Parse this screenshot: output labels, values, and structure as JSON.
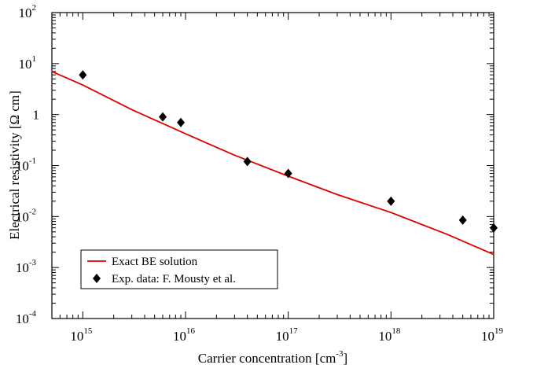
{
  "chart_data": {
    "type": "line",
    "title": "",
    "xlabel": "Carrier concentration [cm",
    "xlabel_exp": "-3",
    "xlabel_end": "]",
    "ylabel": "Electrical resistivity [Ω cm]",
    "x_scale": "log",
    "y_scale": "log",
    "xlim": [
      500000000000000.0,
      1e+19
    ],
    "ylim": [
      0.0001,
      100
    ],
    "x_ticks": [
      {
        "value": 1000000000000000.0,
        "base": "10",
        "exp": "15"
      },
      {
        "value": 1e+16,
        "base": "10",
        "exp": "16"
      },
      {
        "value": 1e+17,
        "base": "10",
        "exp": "17"
      },
      {
        "value": 1e+18,
        "base": "10",
        "exp": "18"
      },
      {
        "value": 1e+19,
        "base": "10",
        "exp": "19"
      }
    ],
    "y_ticks": [
      {
        "value": 0.0001,
        "base": "10",
        "exp": "-4"
      },
      {
        "value": 0.001,
        "base": "10",
        "exp": "-3"
      },
      {
        "value": 0.01,
        "base": "10",
        "exp": "-2"
      },
      {
        "value": 0.1,
        "base": "10",
        "exp": "-1"
      },
      {
        "value": 1,
        "base": "1",
        "exp": ""
      },
      {
        "value": 10,
        "base": "10",
        "exp": "1"
      },
      {
        "value": 100,
        "base": "10",
        "exp": "2"
      }
    ],
    "grid": false,
    "legend_position": "bottom-left",
    "series": [
      {
        "name": "Exact BE solution",
        "kind": "line",
        "color": "#dd0000",
        "x": [
          500000000000000.0,
          1000000000000000.0,
          3000000000000000.0,
          1e+16,
          3e+16,
          1e+17,
          3e+17,
          1e+18,
          3.5e+18,
          1e+19
        ],
        "y": [
          7,
          3.8,
          1.25,
          0.42,
          0.16,
          0.062,
          0.027,
          0.012,
          0.0045,
          0.0018
        ]
      },
      {
        "name": "Exp. data: F. Mousty et al.",
        "kind": "scatter",
        "marker": "diamond",
        "color": "#000000",
        "x": [
          1000000000000000.0,
          6000000000000000.0,
          9000000000000000.0,
          4e+16,
          1e+17,
          1e+18,
          5e+18,
          1e+19
        ],
        "y": [
          6,
          0.9,
          0.7,
          0.12,
          0.07,
          0.02,
          0.0085,
          0.006
        ]
      }
    ]
  }
}
